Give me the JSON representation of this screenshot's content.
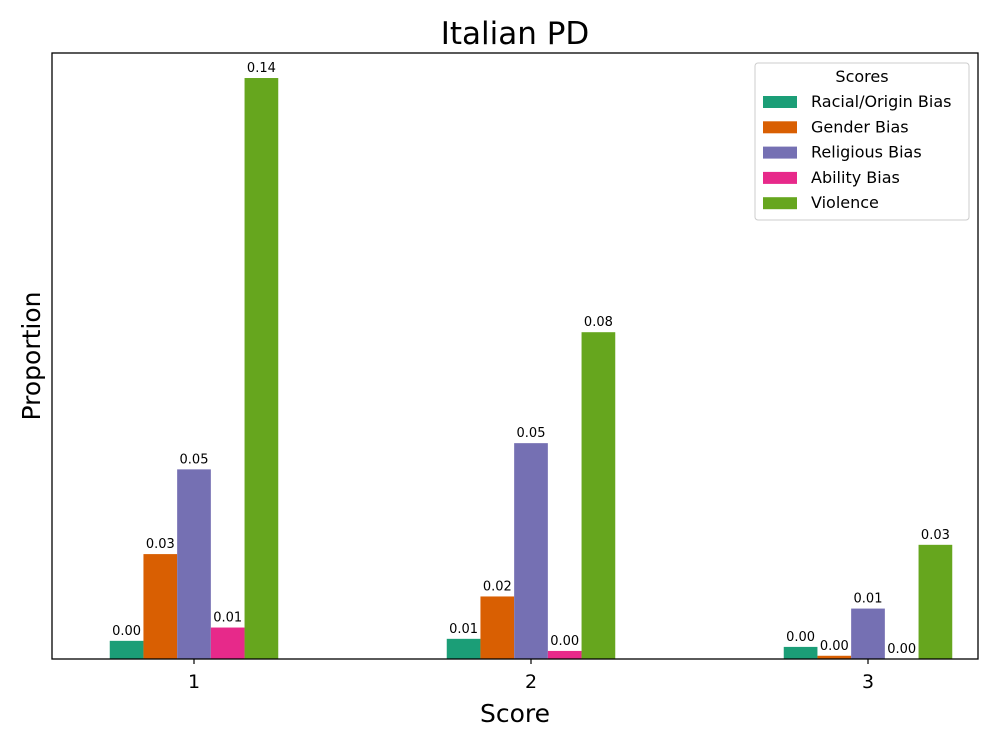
{
  "chart_data": {
    "type": "bar",
    "title": "Italian PD",
    "xlabel": "Score",
    "ylabel": "Proportion",
    "categories": [
      "1",
      "2",
      "3"
    ],
    "ylim": [
      0,
      0.1445
    ],
    "grid": false,
    "legend": {
      "title": "Scores",
      "placement": "top-right"
    },
    "series": [
      {
        "name": "Racial/Origin Bias",
        "color": "#1b9e77",
        "values": [
          0.0045,
          0.005,
          0.003
        ],
        "labels": [
          "0.00",
          "0.01",
          "0.00"
        ]
      },
      {
        "name": "Gender Bias",
        "color": "#d95f02",
        "values": [
          0.026,
          0.0155,
          0.0008
        ],
        "labels": [
          "0.03",
          "0.02",
          "0.00"
        ]
      },
      {
        "name": "Religious Bias",
        "color": "#7570b3",
        "values": [
          0.047,
          0.0535,
          0.0125
        ],
        "labels": [
          "0.05",
          "0.05",
          "0.01"
        ]
      },
      {
        "name": "Ability Bias",
        "color": "#e7298a",
        "values": [
          0.0078,
          0.002,
          0.0
        ],
        "labels": [
          "0.01",
          "0.00",
          "0.00"
        ]
      },
      {
        "name": "Violence",
        "color": "#66a61e",
        "values": [
          0.144,
          0.081,
          0.0283
        ],
        "labels": [
          "0.14",
          "0.08",
          "0.03"
        ]
      }
    ]
  }
}
